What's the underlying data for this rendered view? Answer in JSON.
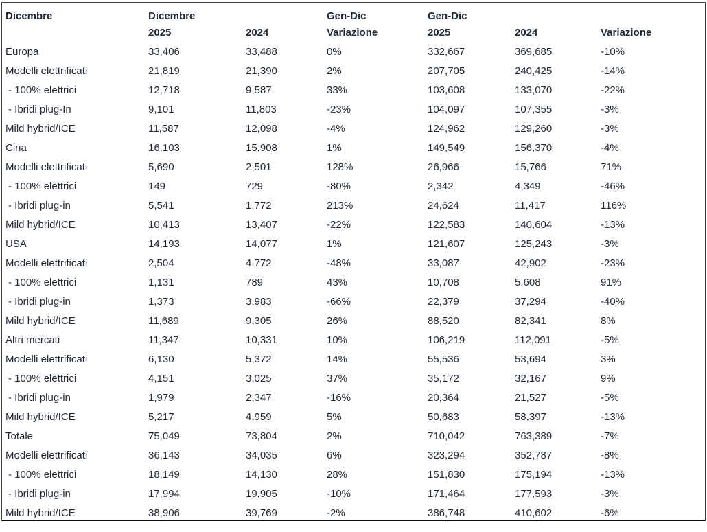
{
  "chart_data": {
    "type": "table",
    "columns": [
      {
        "top": "Dicembre",
        "bottom": ""
      },
      {
        "top": "Dicembre",
        "bottom": "2025"
      },
      {
        "top": "",
        "bottom": "2024"
      },
      {
        "top": "Gen-Dic",
        "bottom": "Variazione"
      },
      {
        "top": "Gen-Dic",
        "bottom": "2025"
      },
      {
        "top": "",
        "bottom": "2024"
      },
      {
        "top": "",
        "bottom": "Variazione"
      }
    ],
    "rows": [
      {
        "label": "Europa",
        "indent": false,
        "values": [
          "33,406",
          "33,488",
          "0%",
          "332,667",
          "369,685",
          "-10%"
        ]
      },
      {
        "label": "Modelli elettrificati",
        "indent": false,
        "values": [
          "21,819",
          "21,390",
          "2%",
          "207,705",
          "240,425",
          "-14%"
        ]
      },
      {
        "label": "- 100% elettrici",
        "indent": true,
        "values": [
          "12,718",
          "9,587",
          "33%",
          "103,608",
          "133,070",
          "-22%"
        ]
      },
      {
        "label": "- Ibridi plug-In",
        "indent": true,
        "values": [
          "9,101",
          "11,803",
          "-23%",
          "104,097",
          "107,355",
          "-3%"
        ]
      },
      {
        "label": "Mild hybrid/ICE",
        "indent": false,
        "values": [
          "11,587",
          "12,098",
          "-4%",
          "124,962",
          "129,260",
          "-3%"
        ]
      },
      {
        "label": "Cina",
        "indent": false,
        "values": [
          "16,103",
          "15,908",
          "1%",
          "149,549",
          "156,370",
          "-4%"
        ]
      },
      {
        "label": "Modelli elettrificati",
        "indent": false,
        "values": [
          "5,690",
          "2,501",
          "128%",
          "26,966",
          "15,766",
          "71%"
        ]
      },
      {
        "label": "- 100% elettrici",
        "indent": true,
        "values": [
          "149",
          "729",
          "-80%",
          "2,342",
          "4,349",
          "-46%"
        ]
      },
      {
        "label": "- Ibridi plug-in",
        "indent": true,
        "values": [
          "5,541",
          "1,772",
          "213%",
          "24,624",
          "11,417",
          "116%"
        ]
      },
      {
        "label": "Mild hybrid/ICE",
        "indent": false,
        "values": [
          "10,413",
          "13,407",
          "-22%",
          "122,583",
          "140,604",
          "-13%"
        ]
      },
      {
        "label": "USA",
        "indent": false,
        "values": [
          "14,193",
          "14,077",
          "1%",
          "121,607",
          "125,243",
          "-3%"
        ]
      },
      {
        "label": "Modelli elettrificati",
        "indent": false,
        "values": [
          "2,504",
          "4,772",
          "-48%",
          "33,087",
          "42,902",
          "-23%"
        ]
      },
      {
        "label": "- 100% elettrici",
        "indent": true,
        "values": [
          "1,131",
          "789",
          "43%",
          "10,708",
          "5,608",
          "91%"
        ]
      },
      {
        "label": "- Ibridi plug-in",
        "indent": true,
        "values": [
          "1,373",
          "3,983",
          "-66%",
          "22,379",
          "37,294",
          "-40%"
        ]
      },
      {
        "label": "Mild hybrid/ICE",
        "indent": false,
        "values": [
          "11,689",
          "9,305",
          "26%",
          "88,520",
          "82,341",
          "8%"
        ]
      },
      {
        "label": "Altri mercati",
        "indent": false,
        "values": [
          "11,347",
          "10,331",
          "10%",
          "106,219",
          "112,091",
          "-5%"
        ]
      },
      {
        "label": "Modelli elettrificati",
        "indent": false,
        "values": [
          "6,130",
          "5,372",
          "14%",
          "55,536",
          "53,694",
          "3%"
        ]
      },
      {
        "label": "- 100% elettrici",
        "indent": true,
        "values": [
          "4,151",
          "3,025",
          "37%",
          "35,172",
          "32,167",
          "9%"
        ]
      },
      {
        "label": "- Ibridi plug-in",
        "indent": true,
        "values": [
          "1,979",
          "2,347",
          "-16%",
          "20,364",
          "21,527",
          "-5%"
        ]
      },
      {
        "label": "Mild hybrid/ICE",
        "indent": false,
        "values": [
          "5,217",
          "4,959",
          "5%",
          "50,683",
          "58,397",
          "-13%"
        ]
      },
      {
        "label": "Totale",
        "indent": false,
        "values": [
          "75,049",
          "73,804",
          "2%",
          "710,042",
          "763,389",
          "-7%"
        ]
      },
      {
        "label": "Modelli elettrificati",
        "indent": false,
        "values": [
          "36,143",
          "34,035",
          "6%",
          "323,294",
          "352,787",
          "-8%"
        ]
      },
      {
        "label": "- 100% elettrici",
        "indent": true,
        "values": [
          "18,149",
          "14,130",
          "28%",
          "151,830",
          "175,194",
          "-13%"
        ]
      },
      {
        "label": "- Ibridi plug-in",
        "indent": true,
        "values": [
          "17,994",
          "19,905",
          "-10%",
          "171,464",
          "177,593",
          "-3%"
        ]
      },
      {
        "label": "Mild hybrid/ICE",
        "indent": false,
        "values": [
          "38,906",
          "39,769",
          "-2%",
          "386,748",
          "410,602",
          "-6%"
        ]
      }
    ],
    "layout": {
      "grid": "off",
      "text_color": "#1f2a36",
      "border_color": "#3d3d3d",
      "bottom_border_color": "#0a0a0a",
      "background": "#ffffff"
    }
  }
}
